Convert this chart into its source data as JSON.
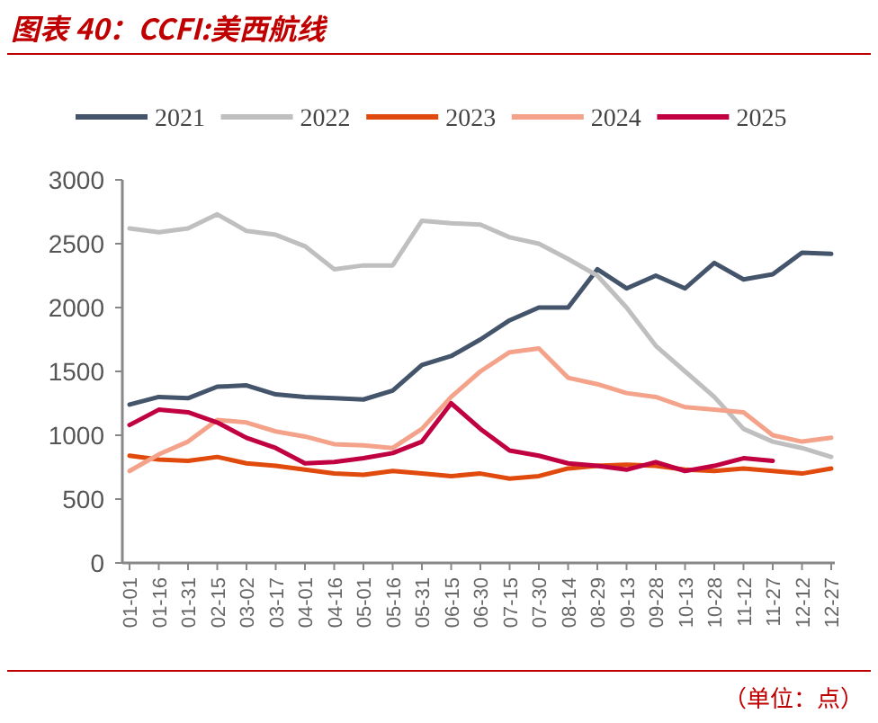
{
  "chart_data": {
    "type": "line",
    "title": "图表 40：CCFI:美西航线",
    "categories": [
      "01-01",
      "01-16",
      "01-31",
      "02-15",
      "03-02",
      "03-17",
      "04-01",
      "04-16",
      "05-01",
      "05-16",
      "05-31",
      "06-15",
      "06-30",
      "07-15",
      "07-30",
      "08-14",
      "08-29",
      "09-13",
      "09-28",
      "10-13",
      "10-28",
      "11-12",
      "11-27",
      "12-12",
      "12-27"
    ],
    "series": [
      {
        "name": "2021",
        "color": "#44546a",
        "values": [
          1240,
          1300,
          1290,
          1380,
          1390,
          1320,
          1300,
          1290,
          1280,
          1350,
          1550,
          1620,
          1750,
          1900,
          2000,
          2000,
          2300,
          2150,
          2250,
          2150,
          2350,
          2220,
          2260,
          2430,
          2420
        ]
      },
      {
        "name": "2022",
        "color": "#bfbfbf",
        "values": [
          2620,
          2590,
          2620,
          2730,
          2600,
          2570,
          2480,
          2300,
          2330,
          2330,
          2680,
          2660,
          2650,
          2550,
          2500,
          2380,
          2250,
          2000,
          1700,
          1500,
          1300,
          1050,
          950,
          900,
          830
        ]
      },
      {
        "name": "2023",
        "color": "#e04a0c",
        "values": [
          840,
          810,
          800,
          830,
          780,
          760,
          730,
          700,
          690,
          720,
          700,
          680,
          700,
          660,
          680,
          740,
          760,
          770,
          760,
          730,
          720,
          740,
          720,
          700,
          740
        ]
      },
      {
        "name": "2024",
        "color": "#f4a38a",
        "values": [
          720,
          850,
          950,
          1120,
          1100,
          1030,
          990,
          930,
          920,
          900,
          1050,
          1300,
          1500,
          1650,
          1680,
          1450,
          1400,
          1330,
          1300,
          1220,
          1200,
          1180,
          1000,
          950,
          980
        ]
      },
      {
        "name": "2025",
        "color": "#c00040",
        "values": [
          1080,
          1200,
          1180,
          1100,
          980,
          900,
          780,
          790,
          820,
          860,
          950,
          1250,
          1050,
          880,
          840,
          780,
          760,
          730,
          790,
          720,
          760,
          820,
          800,
          null,
          null
        ]
      }
    ],
    "ylim": [
      0,
      3000
    ],
    "yticks": [
      0,
      500,
      1000,
      1500,
      2000,
      2500,
      3000
    ],
    "grid": false,
    "legend": "top",
    "marker": "none",
    "line_style": "solid",
    "annotations": [
      "（单位：点）"
    ]
  }
}
